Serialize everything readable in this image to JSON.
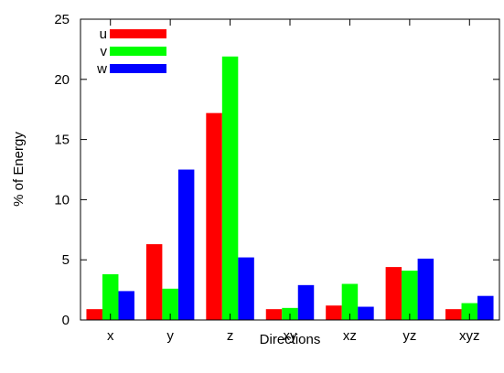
{
  "chart_data": {
    "type": "bar",
    "title": "",
    "xlabel": "Directions",
    "ylabel": "% of Energy",
    "ylim": [
      0,
      25
    ],
    "yticks": [
      0,
      5,
      10,
      15,
      20,
      25
    ],
    "categories": [
      "x",
      "y",
      "z",
      "xy",
      "xz",
      "yz",
      "xyz"
    ],
    "series": [
      {
        "name": "u",
        "color": "#ff0000",
        "values": [
          0.9,
          6.3,
          17.2,
          0.9,
          1.2,
          4.4,
          0.9
        ]
      },
      {
        "name": "v",
        "color": "#00ff00",
        "values": [
          3.8,
          2.6,
          21.9,
          1.0,
          3.0,
          4.1,
          1.4
        ]
      },
      {
        "name": "w",
        "color": "#0000ff",
        "values": [
          2.4,
          12.5,
          5.2,
          2.9,
          1.1,
          5.1,
          2.0
        ]
      }
    ],
    "legend": "top-left",
    "grid": false
  }
}
